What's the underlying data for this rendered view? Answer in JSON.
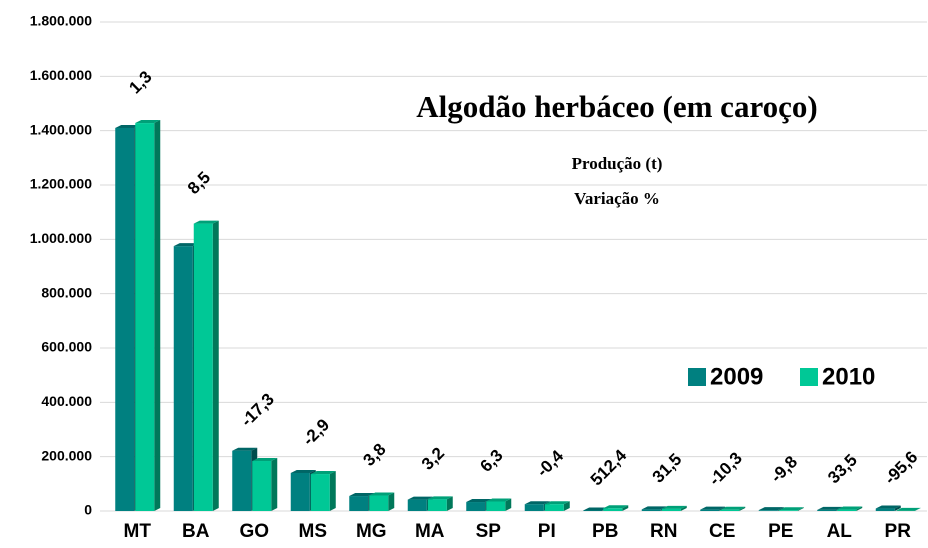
{
  "chart_data": {
    "type": "bar",
    "title": "Algodão herbáceo (em caroço)",
    "subtitle": "Produção (t)",
    "annotation": "Variação %",
    "categories": [
      "MT",
      "BA",
      "GO",
      "MS",
      "MG",
      "MA",
      "SP",
      "PI",
      "PB",
      "RN",
      "CE",
      "PE",
      "AL",
      "PR"
    ],
    "series": [
      {
        "name": "2009",
        "color": "#008080",
        "values": [
          1410000,
          975000,
          222000,
          140000,
          55000,
          42000,
          33000,
          25000,
          2000,
          6000,
          5000,
          3000,
          4000,
          9000
        ]
      },
      {
        "name": "2010",
        "color": "#00c896",
        "values": [
          1428000,
          1058000,
          184000,
          136000,
          57000,
          43000,
          35000,
          25000,
          10000,
          8000,
          4500,
          2700,
          5300,
          400
        ]
      }
    ],
    "variation": {
      "values": [
        1.3,
        8.5,
        -17.3,
        -2.9,
        3.8,
        3.2,
        6.3,
        -0.4,
        512.4,
        31.5,
        -10.3,
        -9.8,
        33.5,
        -95.6
      ],
      "value_labels": [
        "1,3",
        "8,5",
        "-17,3",
        "-2,9",
        "3,8",
        "3,2",
        "6,3",
        "-0,4",
        "512,4",
        "31,5",
        "-10,3",
        "-9,8",
        "33,5",
        "-95,6"
      ]
    },
    "ylim": [
      0,
      1800000
    ],
    "yticks": [
      0,
      {
        "value": 200000,
        "label": "200.000"
      },
      {
        "value": 400000,
        "label": "400.000"
      },
      {
        "value": 600000,
        "label": "600.000"
      },
      {
        "value": 800000,
        "label": "800.000"
      },
      {
        "value": 1000000,
        "label": "1.000.000"
      },
      {
        "value": 1200000,
        "label": "1.200.000"
      },
      {
        "value": 1400000,
        "label": "1.400.000"
      },
      {
        "value": 1600000,
        "label": "1.600.000"
      },
      {
        "value": 1800000,
        "label": "1.800.000"
      }
    ],
    "grid": true
  }
}
